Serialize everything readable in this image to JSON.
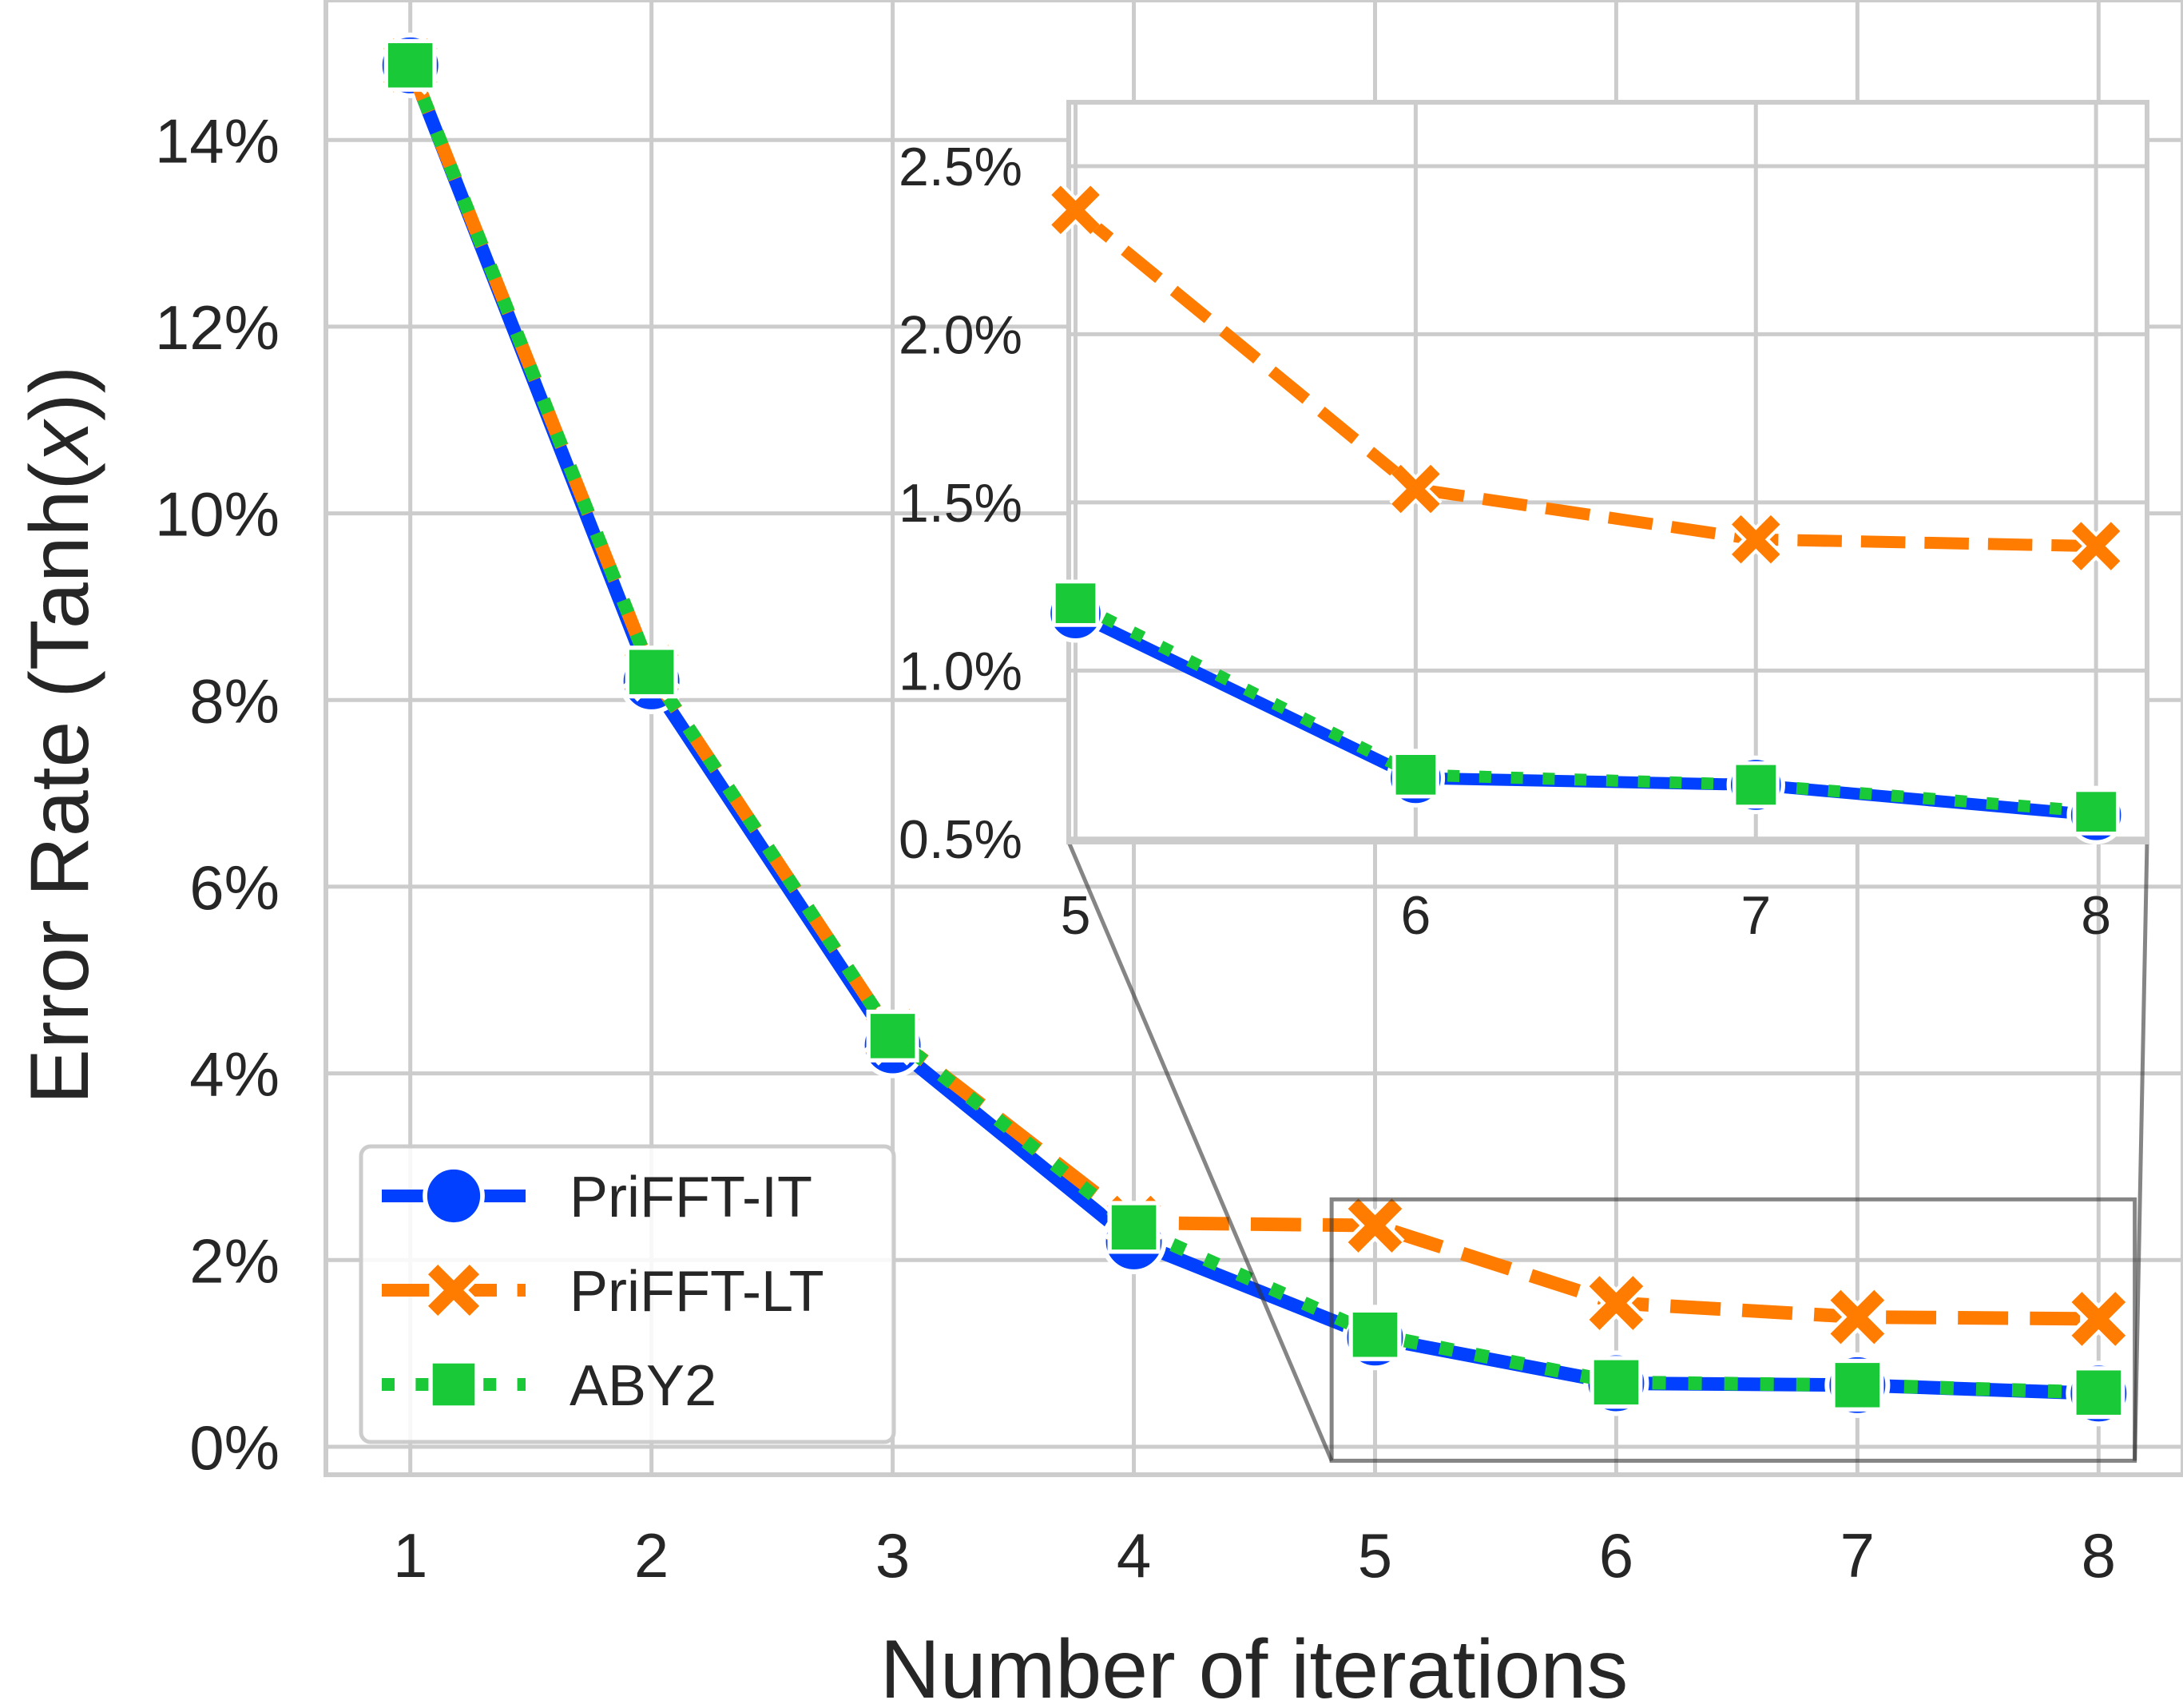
{
  "chart_data": {
    "type": "line",
    "title": "",
    "xlabel": "Number of iterations",
    "ylabel_prefix": "Error Rate (Tanh(",
    "ylabel_var": "x",
    "ylabel_suffix": "))",
    "x": [
      1,
      2,
      3,
      4,
      5,
      6,
      7,
      8
    ],
    "x_tick_labels": [
      "1",
      "2",
      "3",
      "4",
      "5",
      "6",
      "7",
      "8"
    ],
    "xlim": [
      0.65,
      8.35
    ],
    "ylim": [
      -0.003,
      0.155
    ],
    "y_ticks": [
      0,
      0.02,
      0.04,
      0.06,
      0.08,
      0.1,
      0.12,
      0.14
    ],
    "y_tick_labels": [
      "0%",
      "2%",
      "4%",
      "6%",
      "8%",
      "10%",
      "12%",
      "14%"
    ],
    "grid": true,
    "legend_position": "lower-left",
    "series": [
      {
        "name": "PriFFT-IT",
        "color": "#0140ff",
        "line_style": "solid",
        "marker": "circle",
        "values": [
          0.148,
          0.082,
          0.043,
          0.022,
          0.0117,
          0.0068,
          0.0066,
          0.0057
        ]
      },
      {
        "name": "PriFFT-LT",
        "color": "#ff7c00",
        "line_style": "dashed",
        "marker": "x",
        "values": [
          0.148,
          0.083,
          0.044,
          0.024,
          0.0237,
          0.0154,
          0.0139,
          0.0137
        ]
      },
      {
        "name": "ABY2",
        "color": "#1ac938",
        "line_style": "dotted",
        "marker": "square",
        "values": [
          0.148,
          0.083,
          0.044,
          0.0235,
          0.012,
          0.0069,
          0.0066,
          0.0058
        ]
      }
    ],
    "inset": {
      "x": [
        5,
        6,
        7,
        8
      ],
      "x_tick_labels": [
        "5",
        "6",
        "7",
        "8"
      ],
      "xlim": [
        4.98,
        8.15
      ],
      "ylim": [
        0.0049,
        0.0269
      ],
      "y_ticks": [
        0.005,
        0.01,
        0.015,
        0.02,
        0.025
      ],
      "y_tick_labels": [
        "0.5%",
        "1.0%",
        "1.5%",
        "2.0%",
        "2.5%"
      ],
      "zoom_region_x": [
        4.82,
        8.15
      ],
      "zoom_region_y": [
        -0.0015,
        0.0265
      ]
    }
  }
}
